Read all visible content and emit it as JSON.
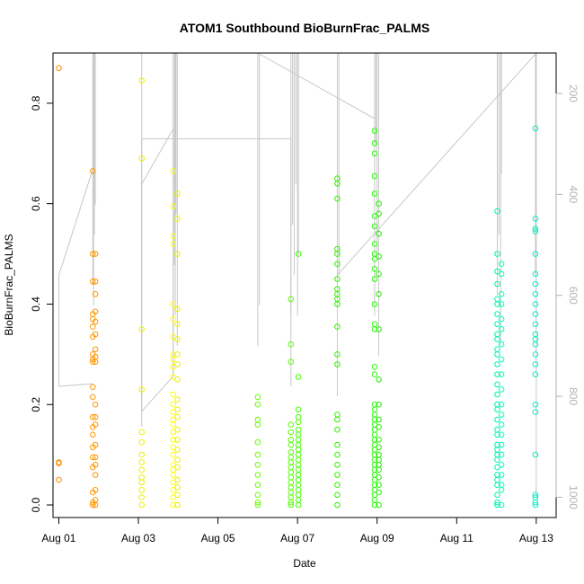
{
  "chart_data": {
    "type": "scatter",
    "title": "ATOM1 Southbound BioBurnFrac_PALMS",
    "xlabel": "Date",
    "ylabel": "BioBurnFrac_PALMS",
    "x_axis": {
      "unit": "date",
      "range": [
        "2016-07-31T20:30",
        "2016-08-13T12:00"
      ],
      "tick_labels": [
        "Aug 01",
        "Aug 03",
        "Aug 05",
        "Aug 07",
        "Aug 09",
        "Aug 11",
        "Aug 13"
      ],
      "tick_dates": [
        "2016-08-01",
        "2016-08-03",
        "2016-08-05",
        "2016-08-07",
        "2016-08-09",
        "2016-08-11",
        "2016-08-13"
      ]
    },
    "y_axis": {
      "range": [
        -0.025,
        0.9
      ],
      "ticks": [
        0.0,
        0.2,
        0.4,
        0.6,
        0.8
      ],
      "tick_labels": [
        "0.0",
        "0.2",
        "0.4",
        "0.6",
        "0.8"
      ]
    },
    "y2_axis": {
      "side": "right",
      "reversed": true,
      "range": [
        1040,
        120
      ],
      "ticks": [
        200,
        400,
        600,
        800,
        1000
      ],
      "tick_labels": [
        "200",
        "400",
        "600",
        "800",
        "1000"
      ],
      "color": "#b3b3b3"
    },
    "grid": false,
    "legend": "none",
    "marker": "open-circle",
    "groups": [
      {
        "x": "2016-08-01T00:00",
        "color": "#FF8C00",
        "values": [
          0.87,
          0.083,
          0.05,
          0.085
        ]
      },
      {
        "x": "2016-08-01T20:30",
        "color": "#FF9900",
        "values": [
          0.665,
          0.5,
          0.445,
          0.38,
          0.37,
          0.355,
          0.335,
          0.3,
          0.29,
          0.285,
          0.235,
          0.215,
          0.175,
          0.155,
          0.14,
          0.115,
          0.095,
          0.075,
          0.025,
          0.005,
          0.0
        ]
      },
      {
        "x": "2016-08-01T22:00",
        "color": "#FF9500",
        "values": [
          0.5,
          0.445,
          0.42,
          0.385,
          0.365,
          0.34,
          0.31,
          0.295,
          0.285,
          0.2,
          0.175,
          0.16,
          0.12,
          0.095,
          0.08,
          0.06,
          0.03,
          0.01,
          0.0
        ]
      },
      {
        "x": "2016-08-03T02:00",
        "color": "#EEEE00",
        "values": [
          0.845,
          0.69,
          0.35,
          0.23,
          0.145,
          0.125,
          0.1,
          0.085,
          0.07,
          0.055,
          0.045,
          0.03,
          0.015,
          0.0
        ]
      },
      {
        "x": "2016-08-03T21:00",
        "color": "#FFFF00",
        "values": [
          0.665,
          0.595,
          0.535,
          0.52,
          0.4,
          0.37,
          0.335,
          0.3,
          0.29,
          0.275,
          0.255,
          0.22,
          0.2,
          0.185,
          0.17,
          0.16,
          0.145,
          0.13,
          0.115,
          0.1,
          0.08,
          0.07,
          0.06,
          0.045,
          0.03,
          0.015,
          0.0
        ]
      },
      {
        "x": "2016-08-03T23:30",
        "color": "#EEEE00",
        "values": [
          0.62,
          0.57,
          0.5,
          0.39,
          0.36,
          0.33,
          0.3,
          0.28,
          0.25,
          0.21,
          0.19,
          0.175,
          0.15,
          0.13,
          0.11,
          0.09,
          0.075,
          0.05,
          0.035,
          0.02,
          0.0
        ]
      },
      {
        "x": "2016-08-06T00:00",
        "color": "#66FF00",
        "values": [
          0.215,
          0.2,
          0.17,
          0.16,
          0.125,
          0.1,
          0.08,
          0.06,
          0.04,
          0.02,
          0.005,
          0.0
        ]
      },
      {
        "x": "2016-08-06T20:00",
        "color": "#55FF00",
        "values": [
          0.41,
          0.32,
          0.285,
          0.16,
          0.145,
          0.13,
          0.12,
          0.105,
          0.095,
          0.085,
          0.075,
          0.065,
          0.055,
          0.045,
          0.035,
          0.025,
          0.015,
          0.005,
          0.0
        ]
      },
      {
        "x": "2016-08-07T00:30",
        "color": "#44FF00",
        "values": [
          0.5,
          0.255,
          0.19,
          0.175,
          0.165,
          0.15,
          0.14,
          0.13,
          0.12,
          0.11,
          0.1,
          0.09,
          0.08,
          0.07,
          0.06,
          0.05,
          0.04,
          0.03,
          0.02,
          0.01,
          0.0
        ]
      },
      {
        "x": "2016-08-08T00:00",
        "color": "#33EE00",
        "values": [
          0.65,
          0.64,
          0.61,
          0.51,
          0.5,
          0.48,
          0.45,
          0.43,
          0.42,
          0.41,
          0.4,
          0.355,
          0.3,
          0.28,
          0.18,
          0.17,
          0.15,
          0.12,
          0.1,
          0.08,
          0.06,
          0.04,
          0.02,
          0.0
        ]
      },
      {
        "x": "2016-08-08T22:30",
        "color": "#22FF00",
        "values": [
          0.745,
          0.72,
          0.7,
          0.655,
          0.62,
          0.575,
          0.555,
          0.52,
          0.5,
          0.49,
          0.47,
          0.45,
          0.4,
          0.36,
          0.35,
          0.275,
          0.26,
          0.2,
          0.19,
          0.18,
          0.17,
          0.16,
          0.15,
          0.14,
          0.13,
          0.12,
          0.11,
          0.1,
          0.09,
          0.08,
          0.07,
          0.06,
          0.05,
          0.04,
          0.03,
          0.02,
          0.01,
          0.0
        ]
      },
      {
        "x": "2016-08-09T01:00",
        "color": "#22EE00",
        "values": [
          0.6,
          0.58,
          0.54,
          0.495,
          0.46,
          0.42,
          0.35,
          0.25,
          0.2,
          0.17,
          0.155,
          0.13,
          0.115,
          0.1,
          0.09,
          0.08,
          0.07,
          0.055,
          0.04,
          0.025,
          0.0
        ]
      },
      {
        "x": "2016-08-12T00:30",
        "color": "#00EEB0",
        "values": [
          0.585,
          0.5,
          0.465,
          0.44,
          0.41,
          0.4,
          0.38,
          0.36,
          0.34,
          0.33,
          0.31,
          0.3,
          0.28,
          0.26,
          0.24,
          0.22,
          0.2,
          0.19,
          0.17,
          0.15,
          0.14,
          0.12,
          0.11,
          0.1,
          0.09,
          0.075,
          0.06,
          0.05,
          0.04,
          0.02,
          0.005,
          0.0
        ]
      },
      {
        "x": "2016-08-12T03:00",
        "color": "#00FFB4",
        "values": [
          0.48,
          0.46,
          0.42,
          0.4,
          0.37,
          0.35,
          0.32,
          0.29,
          0.26,
          0.23,
          0.2,
          0.18,
          0.16,
          0.14,
          0.12,
          0.1,
          0.08,
          0.06,
          0.04,
          0.03,
          0.0
        ]
      },
      {
        "x": "2016-08-12T23:30",
        "color": "#00EEC0",
        "values": [
          0.75,
          0.57,
          0.55,
          0.545,
          0.5,
          0.46,
          0.44,
          0.42,
          0.4,
          0.38,
          0.36,
          0.34,
          0.33,
          0.32,
          0.3,
          0.28,
          0.26,
          0.2,
          0.185,
          0.1,
          0.02,
          0.015,
          0.005,
          0.0
        ]
      }
    ],
    "flight_track": {
      "axis": "y2",
      "color": "#c8c8c8",
      "segments": [
        [
          [
            "2016-08-01T00:00",
            560
          ],
          [
            "2016-08-01T00:00",
            780
          ],
          [
            "2016-08-01T20:30",
            775
          ]
        ],
        [
          [
            "2016-08-01T00:00",
            560
          ],
          [
            "2016-08-01T20:30",
            350
          ],
          [
            "2016-08-01T20:30",
            140
          ]
        ],
        [
          [
            "2016-08-03T02:00",
            830
          ],
          [
            "2016-08-03T21:00",
            760
          ],
          [
            "2016-08-03T21:00",
            270
          ],
          [
            "2016-08-03T02:00",
            380
          ],
          [
            "2016-08-03T02:00",
            830
          ]
        ],
        [
          [
            "2016-08-03T02:00",
            860
          ],
          [
            "2016-08-03T02:00",
            290
          ],
          [
            "2016-08-06T20:00",
            290
          ],
          [
            "2016-08-06T20:00",
            780
          ]
        ],
        [
          [
            "2016-08-06T00:00",
            120
          ],
          [
            "2016-08-08T22:30",
            250
          ],
          [
            "2016-08-08T22:30",
            380
          ]
        ],
        [
          [
            "2016-08-08T00:00",
            560
          ],
          [
            "2016-08-13T00:00",
            120
          ],
          [
            "2016-08-13T00:00",
            1000
          ]
        ]
      ],
      "spikes": [
        {
          "x": "2016-08-01T20:30",
          "bottom": 580
        },
        {
          "x": "2016-08-01T21:00",
          "bottom": 620
        },
        {
          "x": "2016-08-01T21:30",
          "bottom": 480
        },
        {
          "x": "2016-08-01T22:00",
          "bottom": 420
        },
        {
          "x": "2016-08-03T02:00",
          "bottom": 820
        },
        {
          "x": "2016-08-03T21:00",
          "bottom": 760
        },
        {
          "x": "2016-08-03T21:45",
          "bottom": 540
        },
        {
          "x": "2016-08-03T22:15",
          "bottom": 640
        },
        {
          "x": "2016-08-03T22:45",
          "bottom": 440
        },
        {
          "x": "2016-08-03T23:30",
          "bottom": 700
        },
        {
          "x": "2016-08-06T00:00",
          "bottom": 700
        },
        {
          "x": "2016-08-06T01:00",
          "bottom": 620
        },
        {
          "x": "2016-08-06T20:00",
          "bottom": 640
        },
        {
          "x": "2016-08-06T21:00",
          "bottom": 460
        },
        {
          "x": "2016-08-06T22:00",
          "bottom": 560
        },
        {
          "x": "2016-08-06T23:00",
          "bottom": 380
        },
        {
          "x": "2016-08-07T00:00",
          "bottom": 640
        },
        {
          "x": "2016-08-07T00:30",
          "bottom": 520
        },
        {
          "x": "2016-08-08T00:00",
          "bottom": 800
        },
        {
          "x": "2016-08-08T01:00",
          "bottom": 560
        },
        {
          "x": "2016-08-08T22:30",
          "bottom": 640
        },
        {
          "x": "2016-08-08T23:15",
          "bottom": 300
        },
        {
          "x": "2016-08-09T00:00",
          "bottom": 520
        },
        {
          "x": "2016-08-09T01:00",
          "bottom": 720
        },
        {
          "x": "2016-08-12T00:30",
          "bottom": 600
        },
        {
          "x": "2016-08-12T01:30",
          "bottom": 480
        },
        {
          "x": "2016-08-12T02:30",
          "bottom": 700
        },
        {
          "x": "2016-08-12T03:00",
          "bottom": 360
        },
        {
          "x": "2016-08-12T23:30",
          "bottom": 560
        },
        {
          "x": "2016-08-13T00:00",
          "bottom": 440
        }
      ]
    }
  }
}
